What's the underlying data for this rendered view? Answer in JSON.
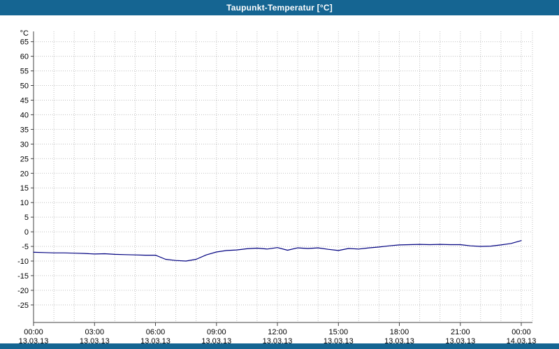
{
  "title_bar": {
    "title": "Taupunkt-Temperatur [°C]",
    "bg_color": "#156592",
    "text_color": "#ffffff"
  },
  "footer_bar": {
    "bg_color": "#156592"
  },
  "chart_data": {
    "type": "line",
    "title": "Taupunkt-Temperatur [°C]",
    "xlabel": "",
    "ylabel": "°C",
    "ylim": [
      -31,
      68.5
    ],
    "yticks": {
      "min": -25,
      "max": 65,
      "step": 5
    },
    "xlim_hours": [
      0,
      24
    ],
    "x_minor_step_hours": 1,
    "x_major_step_hours": 3,
    "grid": true,
    "grid_color": "#c0c0c0",
    "axis_color": "#444444",
    "legend_position": "none",
    "x_major_labels": [
      {
        "time": "00:00",
        "date": "13.03.13"
      },
      {
        "time": "03:00",
        "date": "13.03.13"
      },
      {
        "time": "06:00",
        "date": "13.03.13"
      },
      {
        "time": "09:00",
        "date": "13.03.13"
      },
      {
        "time": "12:00",
        "date": "13.03.13"
      },
      {
        "time": "15:00",
        "date": "13.03.13"
      },
      {
        "time": "18:00",
        "date": "13.03.13"
      },
      {
        "time": "21:00",
        "date": "13.03.13"
      },
      {
        "time": "00:00",
        "date": "14.03.13"
      }
    ],
    "series": [
      {
        "name": "Taupunkt-Temperatur",
        "color": "#000080",
        "x_hours": [
          0,
          0.5,
          1,
          1.5,
          2,
          2.5,
          3,
          3.5,
          4,
          4.5,
          5,
          5.5,
          6,
          6.5,
          7,
          7.5,
          8,
          8.5,
          9,
          9.5,
          10,
          10.5,
          11,
          11.5,
          12,
          12.5,
          13,
          13.5,
          14,
          14.5,
          15,
          15.5,
          16,
          16.5,
          17,
          17.5,
          18,
          18.5,
          19,
          19.5,
          20,
          20.5,
          21,
          21.5,
          22,
          22.5,
          23,
          23.5,
          24
        ],
        "values": [
          -7.0,
          -7.1,
          -7.2,
          -7.2,
          -7.3,
          -7.4,
          -7.6,
          -7.5,
          -7.7,
          -7.8,
          -7.9,
          -8.0,
          -8.0,
          -9.4,
          -9.8,
          -10.0,
          -9.4,
          -7.9,
          -6.9,
          -6.4,
          -6.2,
          -5.8,
          -5.6,
          -5.9,
          -5.4,
          -6.3,
          -5.5,
          -5.7,
          -5.5,
          -6.0,
          -6.4,
          -5.7,
          -5.9,
          -5.5,
          -5.2,
          -4.8,
          -4.5,
          -4.4,
          -4.3,
          -4.4,
          -4.3,
          -4.4,
          -4.4,
          -4.8,
          -5.0,
          -4.9,
          -4.5,
          -4.0,
          -3.0
        ]
      }
    ]
  }
}
